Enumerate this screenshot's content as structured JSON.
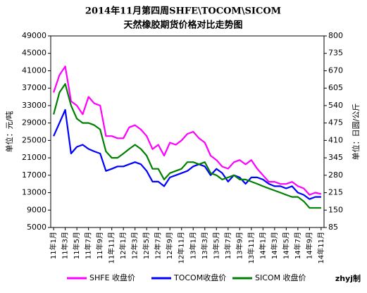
{
  "chart_data": {
    "type": "line",
    "title": "2014年11月第四周SHFE\\TOCOM\\SICOM",
    "subtitle": "天然橡胶期货价格对比走势图",
    "y_label": "单位：元/吨",
    "y2_label": "单位：日圆/公斤",
    "credit": "zhyj制",
    "categories": [
      "11年1月",
      null,
      "11年3月",
      null,
      "11年5月",
      null,
      "11年7月",
      null,
      "11年9月",
      null,
      "11年11月",
      null,
      "12年1月",
      null,
      "12年3月",
      null,
      "12年5月",
      null,
      "12年7月",
      null,
      "12年9月",
      null,
      "12年11月",
      null,
      "13年1月",
      null,
      "13年3月",
      null,
      "13年5月",
      null,
      "13年7月",
      null,
      "13年9月",
      null,
      "13年11月",
      null,
      "14年1月",
      null,
      "14年3月",
      null,
      "14年5月",
      null,
      "14年7月",
      null,
      "14年9月",
      null,
      "14年11月"
    ],
    "ylim": [
      5000,
      49000
    ],
    "yticks": [
      5000,
      9000,
      13000,
      17000,
      21000,
      25000,
      29000,
      33000,
      37000,
      41000,
      45000,
      49000
    ],
    "y2lim": [
      85,
      800
    ],
    "y2ticks": [
      85,
      150,
      215,
      280,
      345,
      410,
      475,
      540,
      605,
      670,
      735,
      800
    ],
    "grid": false,
    "legend": "bottom",
    "series": [
      {
        "name": "SHFE 收盘价",
        "color": "#ff00ff",
        "values": [
          36000,
          40000,
          42000,
          34000,
          33000,
          31000,
          35000,
          33500,
          33000,
          26000,
          26000,
          25500,
          25500,
          28000,
          28500,
          27500,
          26000,
          23000,
          24000,
          21500,
          24500,
          24000,
          25000,
          26500,
          27000,
          25500,
          24500,
          21500,
          20500,
          19000,
          18500,
          20000,
          20500,
          19500,
          20500,
          18500,
          17000,
          15500,
          15500,
          15000,
          15000,
          15500,
          14500,
          14000,
          12500,
          13000,
          12700
        ]
      },
      {
        "name": "TOCOM收盘价",
        "color": "#0000ff",
        "axis": "y2",
        "values": [
          426,
          475,
          524,
          361,
          386,
          394,
          378,
          369,
          361,
          296,
          304,
          313,
          313,
          321,
          329,
          321,
          296,
          256,
          256,
          239,
          272,
          280,
          288,
          296,
          313,
          321,
          313,
          280,
          304,
          288,
          256,
          280,
          272,
          248,
          272,
          272,
          264,
          248,
          239,
          239,
          231,
          239,
          215,
          207,
          191,
          199,
          199
        ]
      },
      {
        "name": "SICOM 收盘价",
        "color": "#008000",
        "axis": "y2",
        "values": [
          507,
          589,
          621,
          540,
          491,
          475,
          475,
          467,
          451,
          369,
          345,
          345,
          361,
          378,
          394,
          378,
          353,
          304,
          304,
          264,
          288,
          296,
          304,
          329,
          329,
          321,
          329,
          288,
          280,
          264,
          272,
          280,
          264,
          264,
          256,
          248,
          239,
          231,
          223,
          215,
          207,
          199,
          199,
          183,
          158,
          158,
          158
        ]
      }
    ]
  }
}
